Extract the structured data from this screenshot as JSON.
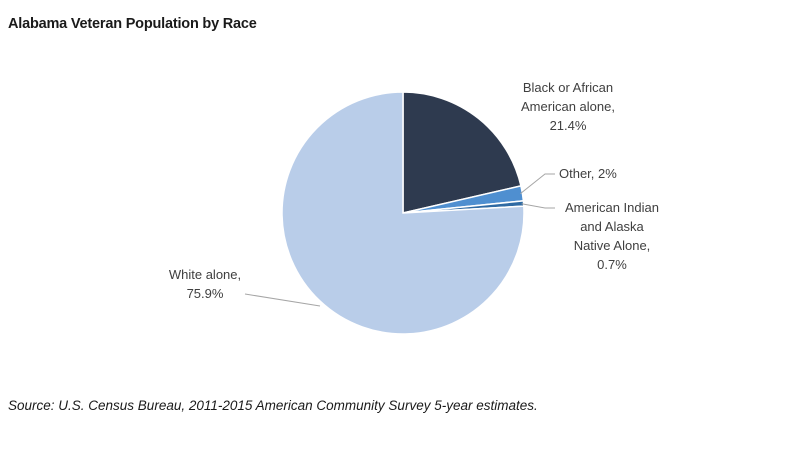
{
  "chart_data": {
    "type": "pie",
    "title": "Alabama Veteran Population by Race",
    "slices": [
      {
        "name": "Black or African American alone",
        "value": 21.4,
        "label_lines": [
          "Black or African",
          "American alone,",
          "21.4%"
        ],
        "color": "#2e3a4f"
      },
      {
        "name": "Other",
        "value": 2,
        "label_lines": [
          "Other, 2%"
        ],
        "color": "#4f8fd0"
      },
      {
        "name": "American Indian and Alaska Native Alone",
        "value": 0.7,
        "label_lines": [
          "American Indian",
          "and Alaska",
          "Native Alone,",
          "0.7%"
        ],
        "color": "#2f6aa3"
      },
      {
        "name": "White alone",
        "value": 75.9,
        "label_lines": [
          "White alone,",
          "75.9%"
        ],
        "color": "#b9cde9"
      }
    ]
  },
  "source": "Source: U.S. Census Bureau, 2011-2015 American Community Survey 5-year estimates."
}
